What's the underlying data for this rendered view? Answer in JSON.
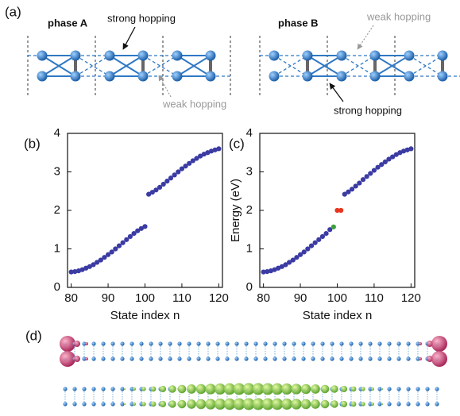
{
  "panel_labels": [
    "(a)",
    "(b)",
    "(c)",
    "(d)"
  ],
  "phase_a": {
    "title": "phase A",
    "strong": "strong hopping",
    "weak": "weak hopping"
  },
  "phase_b": {
    "title": "phase B",
    "weak": "weak hopping",
    "strong": "strong hopping"
  },
  "chart_data": [
    {
      "type": "scatter",
      "xlabel": "State index n",
      "xlim": [
        79,
        121
      ],
      "xticks": [
        80,
        90,
        100,
        110,
        120
      ],
      "ylim": [
        0,
        4
      ],
      "yticks": [
        0,
        1,
        2,
        3,
        4
      ],
      "series": [
        {
          "color": "#3b3ba3",
          "x": [
            80,
            81,
            82,
            83,
            84,
            85,
            86,
            87,
            88,
            89,
            90,
            91,
            92,
            93,
            94,
            95,
            96,
            97,
            98,
            99,
            100,
            101,
            102,
            103,
            104,
            105,
            106,
            107,
            108,
            109,
            110,
            111,
            112,
            113,
            114,
            115,
            116,
            117,
            118,
            119,
            120
          ],
          "values": [
            0.4,
            0.41,
            0.43,
            0.46,
            0.5,
            0.54,
            0.59,
            0.65,
            0.71,
            0.78,
            0.85,
            0.92,
            1.0,
            1.08,
            1.16,
            1.24,
            1.32,
            1.4,
            1.47,
            1.53,
            1.58,
            2.42,
            2.47,
            2.53,
            2.6,
            2.68,
            2.76,
            2.84,
            2.92,
            3.0,
            3.08,
            3.15,
            3.22,
            3.29,
            3.35,
            3.41,
            3.46,
            3.5,
            3.54,
            3.57,
            3.6
          ]
        }
      ]
    },
    {
      "type": "scatter",
      "xlabel": "State index n",
      "ylabel": "Energy (eV)",
      "xlim": [
        79,
        121
      ],
      "xticks": [
        80,
        90,
        100,
        110,
        120
      ],
      "ylim": [
        0,
        4
      ],
      "yticks": [
        0,
        1,
        2,
        3,
        4
      ],
      "series": [
        {
          "color": "#3b3ba3",
          "x": [
            80,
            81,
            82,
            83,
            84,
            85,
            86,
            87,
            88,
            89,
            90,
            91,
            92,
            93,
            94,
            95,
            96,
            97,
            98,
            102,
            103,
            104,
            105,
            106,
            107,
            108,
            109,
            110,
            111,
            112,
            113,
            114,
            115,
            116,
            117,
            118,
            119,
            120
          ],
          "values": [
            0.4,
            0.41,
            0.43,
            0.46,
            0.5,
            0.54,
            0.59,
            0.65,
            0.71,
            0.78,
            0.85,
            0.92,
            1.0,
            1.08,
            1.16,
            1.24,
            1.32,
            1.4,
            1.5,
            2.42,
            2.48,
            2.55,
            2.63,
            2.71,
            2.8,
            2.88,
            2.96,
            3.04,
            3.12,
            3.19,
            3.26,
            3.33,
            3.39,
            3.45,
            3.5,
            3.54,
            3.57,
            3.6
          ]
        },
        {
          "color": "#3ca03c",
          "x": [
            99
          ],
          "values": [
            1.57
          ]
        },
        {
          "color": "#e8351e",
          "x": [
            100,
            101
          ],
          "values": [
            2.0,
            2.0
          ]
        }
      ]
    }
  ]
}
